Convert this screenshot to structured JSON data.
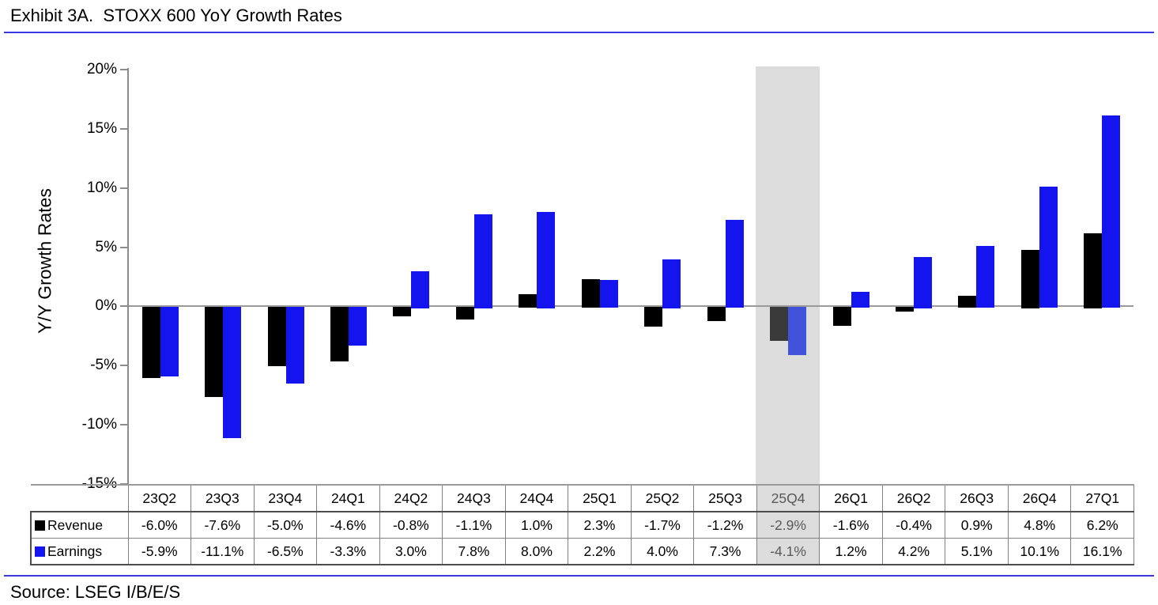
{
  "header": {
    "title": "Exhibit 3A.  STOXX 600 YoY Growth Rates"
  },
  "footer": {
    "source": "Source: LSEG I/B/E/S"
  },
  "colors": {
    "divider_blue": "#3a3ae0",
    "axis_gray": "#8c8c8c",
    "revenue_black": "#000000",
    "earnings_blue": "#1414ee",
    "highlight_band": "#dcdcdc",
    "highlight_revenue": "#3a3a3a",
    "highlight_earnings": "#4153db",
    "highlight_text": "#595959",
    "table_border": "#808080"
  },
  "chart_data": {
    "type": "bar",
    "title": "STOXX 600 YoY Growth Rates",
    "xlabel": "",
    "ylabel": "Y/Y Growth Rates",
    "categories": [
      "23Q2",
      "23Q3",
      "23Q4",
      "24Q1",
      "24Q2",
      "24Q3",
      "24Q4",
      "25Q1",
      "25Q2",
      "25Q3",
      "25Q4",
      "26Q1",
      "26Q2",
      "26Q3",
      "26Q4",
      "27Q1"
    ],
    "series": [
      {
        "name": "Revenue",
        "color": "#000000",
        "highlight_color": "#3a3a3a",
        "values": [
          -6.0,
          -7.6,
          -5.0,
          -4.6,
          -0.8,
          -1.1,
          1.0,
          2.3,
          -1.7,
          -1.2,
          -2.9,
          -1.6,
          -0.4,
          0.9,
          4.8,
          6.2
        ]
      },
      {
        "name": "Earnings",
        "color": "#1414ee",
        "highlight_color": "#4153db",
        "values": [
          -5.9,
          -11.1,
          -6.5,
          -3.3,
          3.0,
          7.8,
          8.0,
          2.2,
          4.0,
          7.3,
          -4.1,
          1.2,
          4.2,
          5.1,
          10.1,
          16.1
        ]
      }
    ],
    "ylim": [
      -15,
      20
    ],
    "yticks": [
      20,
      15,
      10,
      5,
      0,
      -5,
      -10,
      -15
    ],
    "ytick_labels": [
      "20%",
      "15%",
      "10%",
      "5%",
      "0%",
      "-5%",
      "-10%",
      "-15%"
    ],
    "grid": false,
    "legend_position": "table-row-headers-left",
    "highlight": {
      "category": "25Q4",
      "index": 10,
      "band_color": "#dcdcdc",
      "text_color": "#595959"
    }
  },
  "table": {
    "columns": [
      "23Q2",
      "23Q3",
      "23Q4",
      "24Q1",
      "24Q2",
      "24Q3",
      "24Q4",
      "25Q1",
      "25Q2",
      "25Q3",
      "25Q4",
      "26Q1",
      "26Q2",
      "26Q3",
      "26Q4",
      "27Q1"
    ],
    "rows": [
      {
        "label": "Revenue",
        "swatch_color": "#000000",
        "values": [
          "-6.0%",
          "-7.6%",
          "-5.0%",
          "-4.6%",
          "-0.8%",
          "-1.1%",
          "1.0%",
          "2.3%",
          "-1.7%",
          "-1.2%",
          "-2.9%",
          "-1.6%",
          "-0.4%",
          "0.9%",
          "4.8%",
          "6.2%"
        ]
      },
      {
        "label": "Earnings",
        "swatch_color": "#1414ee",
        "values": [
          "-5.9%",
          "-11.1%",
          "-6.5%",
          "-3.3%",
          "3.0%",
          "7.8%",
          "8.0%",
          "2.2%",
          "4.0%",
          "7.3%",
          "-4.1%",
          "1.2%",
          "4.2%",
          "5.1%",
          "10.1%",
          "16.1%"
        ]
      }
    ]
  }
}
